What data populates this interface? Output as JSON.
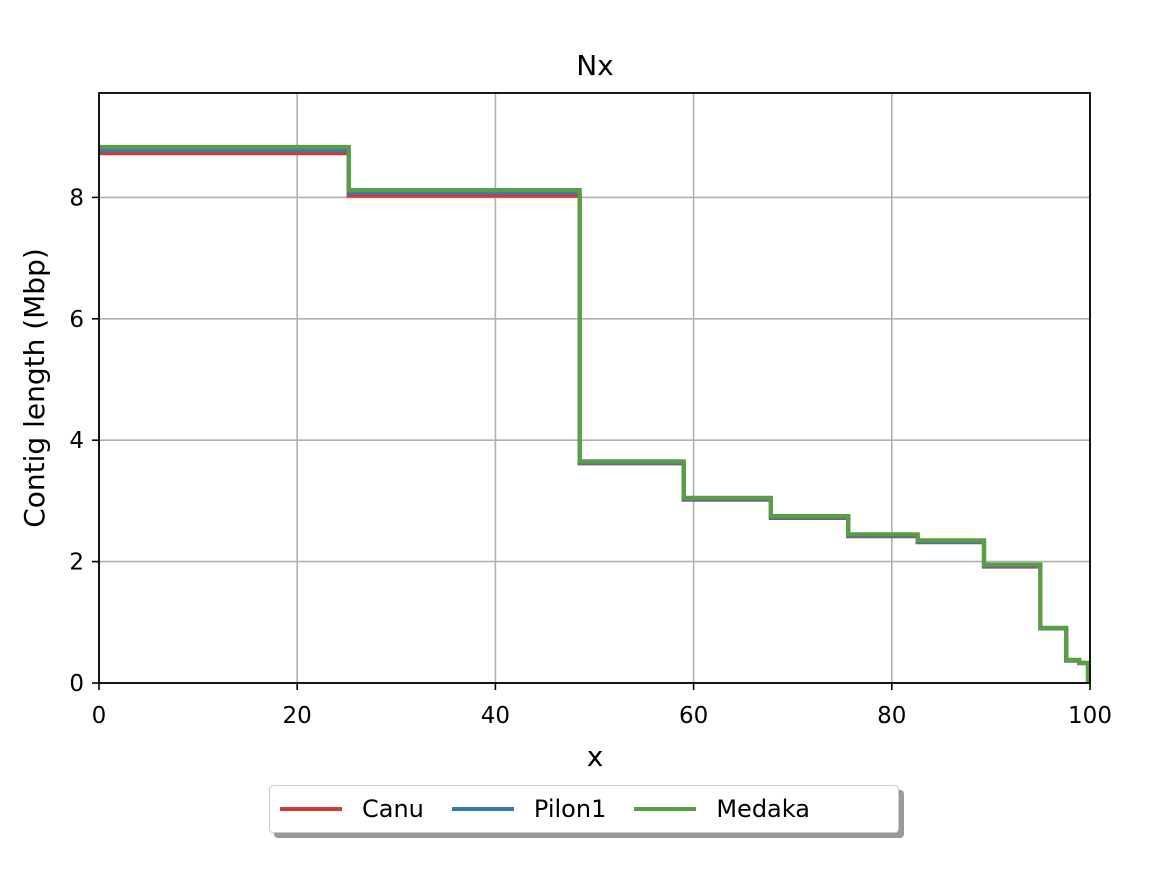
{
  "chart_data": {
    "type": "line",
    "title": "Nx",
    "xlabel": "x",
    "ylabel": "Contig length (Mbp)",
    "xlim": [
      0,
      100
    ],
    "ylim": [
      0,
      9.72
    ],
    "xticks": [
      0,
      20,
      40,
      60,
      80,
      100
    ],
    "yticks": [
      0,
      2,
      4,
      6,
      8
    ],
    "grid": true,
    "legend_position": "below plot, centered",
    "step": true,
    "series": [
      {
        "name": "Canu",
        "color": "#d03a32",
        "x": [
          0,
          25.2,
          25.2,
          48.5,
          48.5,
          59.0,
          59.0,
          67.8,
          67.8,
          75.6,
          75.6,
          82.6,
          82.6,
          89.3,
          89.3,
          95.0,
          95.0,
          97.6,
          97.6,
          98.9,
          98.9,
          99.8,
          99.8
        ],
        "y": [
          8.73,
          8.73,
          8.03,
          8.03,
          3.62,
          3.62,
          3.02,
          3.02,
          2.72,
          2.72,
          2.42,
          2.42,
          2.32,
          2.32,
          1.92,
          1.92,
          0.9,
          0.9,
          0.37,
          0.37,
          0.33,
          0.33,
          0.0
        ]
      },
      {
        "name": "Pilon1",
        "color": "#3a78b4",
        "x": [
          0,
          25.2,
          25.2,
          48.5,
          48.5,
          59.0,
          59.0,
          67.8,
          67.8,
          75.6,
          75.6,
          82.6,
          82.6,
          89.3,
          89.3,
          95.0,
          95.0,
          97.6,
          97.6,
          98.9,
          98.9,
          99.8,
          99.8
        ],
        "y": [
          8.78,
          8.78,
          8.08,
          8.08,
          3.63,
          3.63,
          3.03,
          3.03,
          2.73,
          2.73,
          2.43,
          2.43,
          2.33,
          2.33,
          1.93,
          1.93,
          0.9,
          0.9,
          0.37,
          0.37,
          0.33,
          0.33,
          0.0
        ]
      },
      {
        "name": "Medaka",
        "color": "#5a9e44",
        "x": [
          0,
          25.2,
          25.2,
          48.5,
          48.5,
          59.0,
          59.0,
          67.8,
          67.8,
          75.6,
          75.6,
          82.6,
          82.6,
          89.3,
          89.3,
          95.0,
          95.0,
          97.6,
          97.6,
          98.9,
          98.9,
          99.8,
          99.8
        ],
        "y": [
          8.83,
          8.83,
          8.12,
          8.12,
          3.65,
          3.65,
          3.05,
          3.05,
          2.75,
          2.75,
          2.45,
          2.45,
          2.35,
          2.35,
          1.95,
          1.95,
          0.91,
          0.91,
          0.38,
          0.38,
          0.33,
          0.33,
          0.0
        ]
      }
    ]
  }
}
